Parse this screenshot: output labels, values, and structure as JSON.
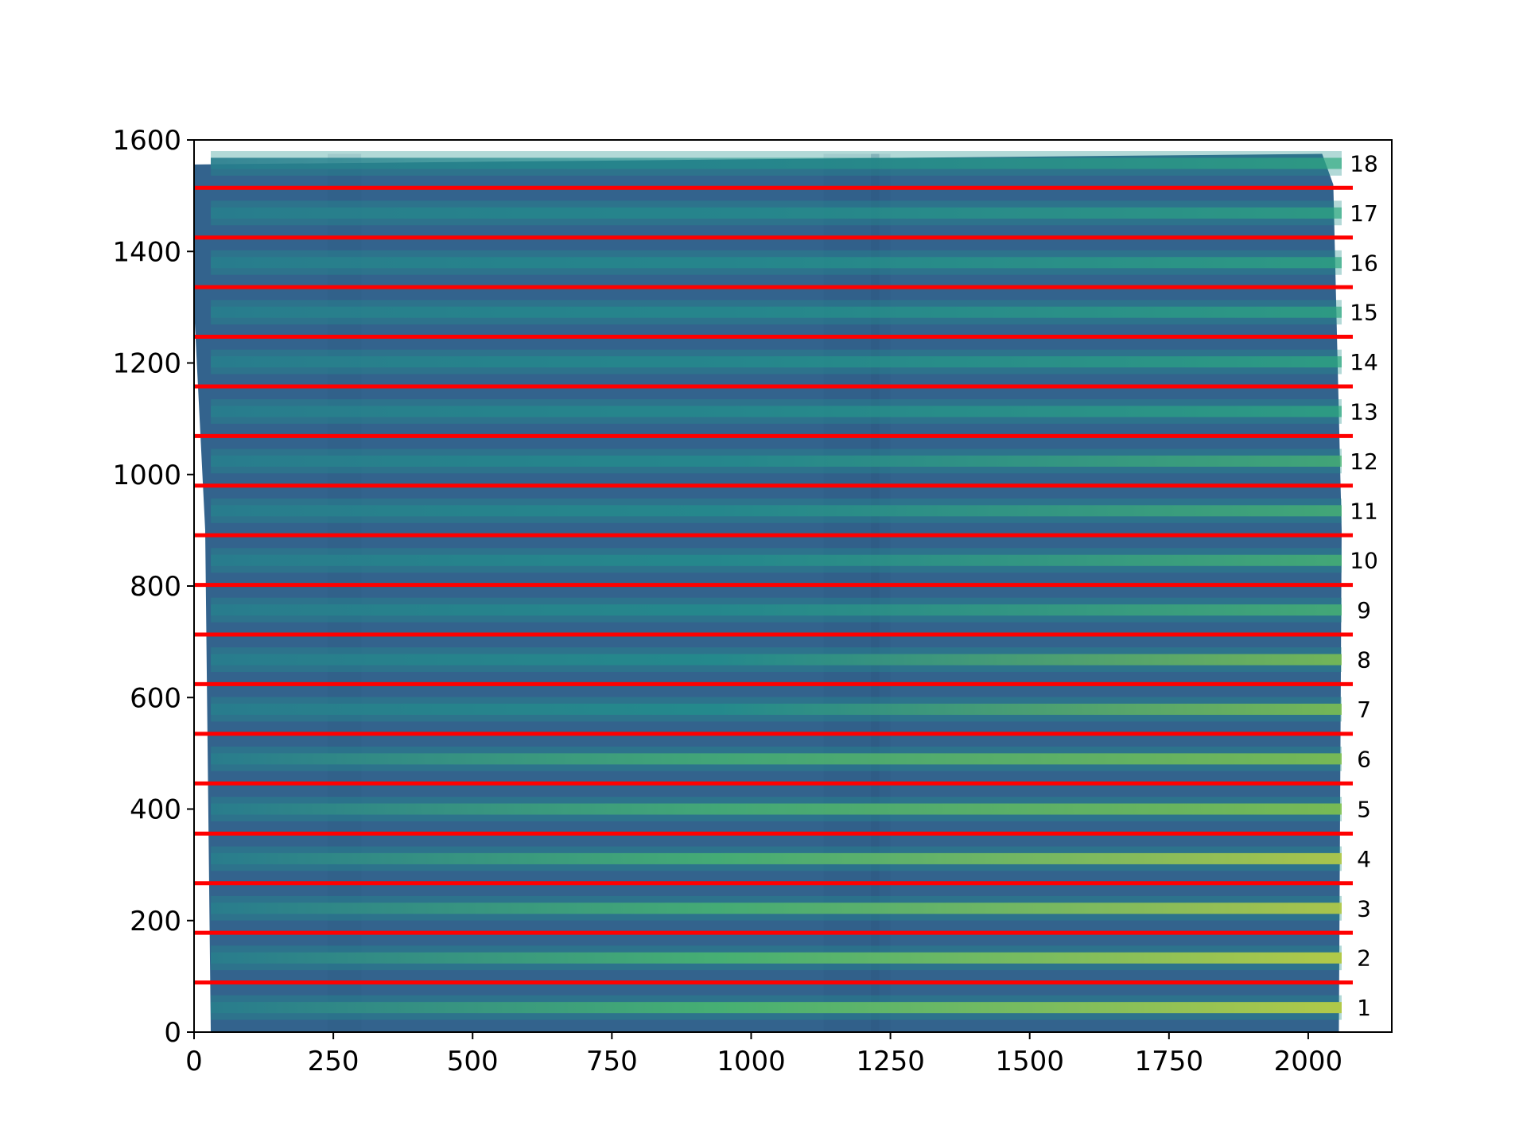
{
  "chart_data": {
    "type": "heatmap",
    "title": "",
    "xlabel": "",
    "ylabel": "",
    "xlim": [
      0,
      2150
    ],
    "ylim": [
      0,
      1600
    ],
    "x_ticks": [
      0,
      250,
      500,
      750,
      1000,
      1250,
      1500,
      1750,
      2000
    ],
    "y_ticks": [
      0,
      200,
      400,
      600,
      800,
      1000,
      1200,
      1400,
      1600
    ],
    "x_tick_labels": [
      "0",
      "250",
      "500",
      "750",
      "1000",
      "1250",
      "1500",
      "1750",
      "2000"
    ],
    "y_tick_labels": [
      "0",
      "200",
      "400",
      "600",
      "800",
      "1000",
      "1200",
      "1400",
      "1600"
    ],
    "colormap": "viridis",
    "background_color": "#33638d",
    "band_color": "#fde725",
    "divider_color": "#ff0000",
    "divider_lines": {
      "x_range": [
        0,
        2080
      ],
      "y_values": [
        89,
        178,
        267,
        356,
        446,
        535,
        624,
        713,
        802,
        891,
        980,
        1069,
        1158,
        1247,
        1336,
        1425,
        1514
      ]
    },
    "orders": [
      {
        "label": "1",
        "y": 44
      },
      {
        "label": "2",
        "y": 133
      },
      {
        "label": "3",
        "y": 222
      },
      {
        "label": "4",
        "y": 311
      },
      {
        "label": "5",
        "y": 400
      },
      {
        "label": "6",
        "y": 490
      },
      {
        "label": "7",
        "y": 579
      },
      {
        "label": "8",
        "y": 668
      },
      {
        "label": "9",
        "y": 757
      },
      {
        "label": "10",
        "y": 846
      },
      {
        "label": "11",
        "y": 935
      },
      {
        "label": "12",
        "y": 1024
      },
      {
        "label": "13",
        "y": 1113
      },
      {
        "label": "14",
        "y": 1202
      },
      {
        "label": "15",
        "y": 1291
      },
      {
        "label": "16",
        "y": 1380
      },
      {
        "label": "17",
        "y": 1469
      },
      {
        "label": "18",
        "y": 1558
      }
    ],
    "band_intensity": [
      1.0,
      1.0,
      0.85,
      0.85,
      0.7,
      0.65,
      0.6,
      0.55,
      0.45,
      0.45,
      0.4,
      0.35,
      0.3,
      0.3,
      0.25,
      0.25,
      0.2,
      0.2
    ]
  }
}
